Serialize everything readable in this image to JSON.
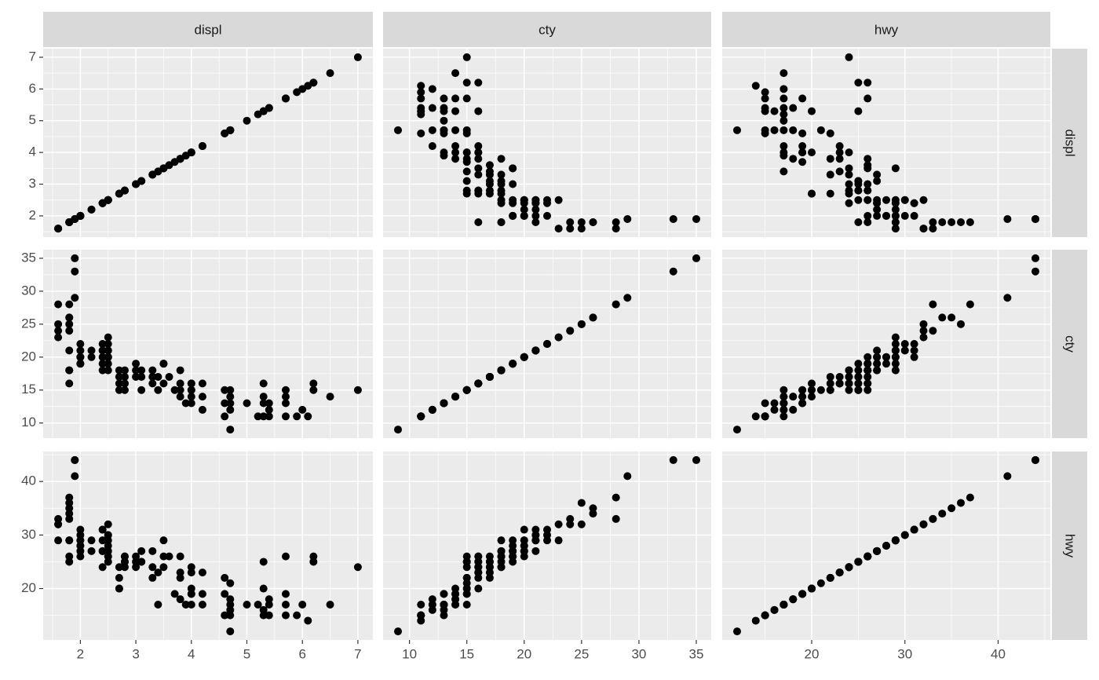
{
  "chart_data": {
    "type": "scatter",
    "point_color": "#000000",
    "variables": [
      {
        "name": "displ",
        "lim": [
          1.33,
          7.27
        ],
        "ticks": [
          2,
          3,
          4,
          5,
          6,
          7
        ],
        "minor_ticks": [
          1.5,
          2.5,
          3.5,
          4.5,
          5.5,
          6.5
        ],
        "values": [
          1.8,
          1.8,
          2.0,
          2.0,
          2.8,
          2.8,
          3.1,
          1.8,
          1.8,
          2.0,
          2.0,
          2.8,
          2.8,
          3.1,
          3.1,
          4.2,
          5.3,
          5.3,
          5.7,
          6.0,
          5.7,
          6.2,
          7.0,
          6.2,
          6.5,
          2.4,
          3.0,
          3.3,
          3.3,
          3.8,
          3.8,
          4.0,
          3.7,
          3.9,
          4.7,
          4.7,
          5.2,
          5.7,
          5.9,
          4.7,
          4.6,
          5.4,
          5.4,
          4.0,
          4.0,
          4.6,
          5.0,
          4.2,
          2.7,
          2.7,
          3.4,
          4.0,
          4.7,
          6.1,
          1.8,
          1.6,
          1.6,
          1.6,
          1.6,
          1.8,
          1.8,
          2.0,
          2.4,
          2.4,
          2.5,
          2.5,
          3.5,
          3.3,
          3.0,
          2.4,
          2.0,
          2.2,
          2.4,
          3.5,
          2.5,
          2.5,
          2.5,
          2.2,
          3.6,
          1.8,
          1.9,
          1.9,
          1.9,
          2.8,
          2.5,
          2.0,
          2.5,
          3.8,
          4.0,
          3.4,
          2.7,
          2.7,
          2.4,
          2.5,
          1.8,
          2.5,
          2.0,
          4.6,
          5.4,
          4.7,
          5.3,
          5.7,
          3.0,
          3.5,
          4.0,
          4.7,
          4.2,
          3.8,
          5.3
        ]
      },
      {
        "name": "cty",
        "lim": [
          7.7,
          36.3
        ],
        "ticks": [
          10,
          15,
          20,
          25,
          30,
          35
        ],
        "minor_ticks": [
          12.5,
          17.5,
          22.5,
          27.5,
          32.5
        ],
        "values": [
          18,
          21,
          20,
          21,
          16,
          18,
          18,
          18,
          16,
          20,
          19,
          15,
          17,
          17,
          15,
          16,
          14,
          11,
          13,
          12,
          15,
          16,
          15,
          15,
          14,
          18,
          17,
          16,
          17,
          15,
          16,
          16,
          15,
          13,
          13,
          9,
          11,
          11,
          11,
          12,
          11,
          11,
          13,
          14,
          13,
          13,
          13,
          14,
          15,
          17,
          15,
          15,
          14,
          11,
          24,
          28,
          24,
          25,
          23,
          26,
          25,
          19,
          21,
          22,
          21,
          18,
          19,
          18,
          18,
          19,
          22,
          21,
          21,
          19,
          20,
          19,
          20,
          20,
          17,
          28,
          33,
          35,
          29,
          16,
          20,
          19,
          21,
          18,
          16,
          17,
          16,
          18,
          20,
          23,
          26,
          22,
          20,
          15,
          12,
          13,
          13,
          14,
          19,
          16,
          15,
          15,
          12,
          14,
          16
        ]
      },
      {
        "name": "hwy",
        "lim": [
          10.4,
          45.6
        ],
        "ticks": [
          20,
          30,
          40
        ],
        "minor_ticks": [
          15,
          25,
          35,
          45
        ],
        "values": [
          29,
          29,
          31,
          30,
          26,
          26,
          27,
          26,
          25,
          28,
          27,
          25,
          25,
          25,
          25,
          23,
          20,
          15,
          17,
          17,
          26,
          26,
          24,
          25,
          17,
          24,
          24,
          22,
          24,
          22,
          23,
          23,
          19,
          17,
          17,
          12,
          17,
          15,
          15,
          16,
          15,
          15,
          17,
          17,
          19,
          19,
          17,
          19,
          20,
          22,
          17,
          19,
          18,
          14,
          33,
          33,
          32,
          32,
          29,
          34,
          36,
          26,
          31,
          31,
          30,
          25,
          26,
          27,
          26,
          27,
          29,
          29,
          27,
          29,
          27,
          26,
          26,
          27,
          26,
          37,
          44,
          44,
          41,
          24,
          28,
          28,
          29,
          26,
          24,
          23,
          20,
          24,
          29,
          32,
          35,
          30,
          29,
          22,
          18,
          15,
          16,
          19,
          25,
          24,
          20,
          21,
          17,
          18,
          25
        ]
      }
    ]
  }
}
